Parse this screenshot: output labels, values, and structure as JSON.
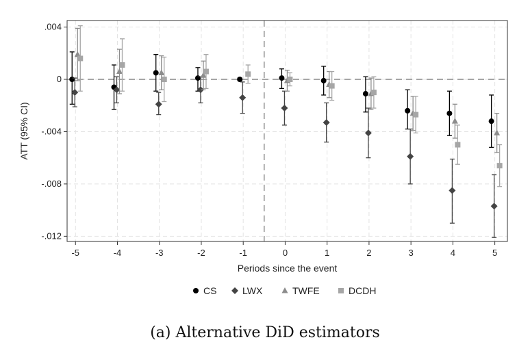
{
  "chart_data": {
    "type": "scatter",
    "subtype": "coefficient plot with 95% CI error bars",
    "title": "",
    "xlabel": "Periods since the event",
    "ylabel": "ATT (95% CI)",
    "x": [
      -5,
      -4,
      -3,
      -2,
      -1,
      0,
      1,
      2,
      3,
      4,
      5
    ],
    "x_tick_labels": [
      "-5",
      "-4",
      "-3",
      "-2",
      "-1",
      "0",
      "1",
      "2",
      "3",
      "4",
      "5"
    ],
    "y_ticks": [
      0.004,
      0,
      -0.004,
      -0.008,
      -0.012
    ],
    "y_tick_labels": [
      ".004",
      "0",
      "-.004",
      "-.008",
      "-.012"
    ],
    "xlim": [
      -5.2,
      5.3
    ],
    "ylim": [
      -0.0124,
      0.0045
    ],
    "reference_lines": {
      "y": 0,
      "x": -0.5
    },
    "grid": true,
    "legend_position": "bottom",
    "series": [
      {
        "name": "CS",
        "marker": "circle",
        "color": "#000000",
        "x": [
          -5,
          -4,
          -3,
          -2,
          -1,
          0,
          1,
          2,
          3,
          4,
          5
        ],
        "values": [
          0.0,
          -0.0006,
          0.0005,
          0.0001,
          0.0,
          0.0001,
          -0.0001,
          -0.0011,
          -0.0024,
          -0.0026,
          -0.0032
        ],
        "ci_low": [
          -0.0019,
          -0.0023,
          -0.0009,
          -0.0009,
          -0.0001,
          -0.0007,
          -0.0012,
          -0.0025,
          -0.0038,
          -0.0043,
          -0.0052
        ],
        "ci_high": [
          0.0021,
          0.0011,
          0.0019,
          0.0009,
          0.0001,
          0.0008,
          0.001,
          0.0002,
          -0.0008,
          -0.0009,
          -0.0012
        ]
      },
      {
        "name": "LWX",
        "marker": "diamond",
        "color": "#444444",
        "x": [
          -5,
          -4,
          -3,
          -2,
          -1,
          0,
          1,
          2,
          3,
          4,
          5
        ],
        "values": [
          -0.001,
          -0.0008,
          -0.0019,
          -0.0008,
          -0.0014,
          -0.0022,
          -0.0033,
          -0.0041,
          -0.0059,
          -0.0085,
          -0.0097
        ],
        "ci_low": [
          -0.0021,
          -0.0018,
          -0.0027,
          -0.0018,
          -0.0026,
          -0.0035,
          -0.0048,
          -0.006,
          -0.008,
          -0.011,
          -0.0121
        ],
        "ci_high": [
          0.0001,
          0.0002,
          -0.001,
          0.0002,
          -0.0002,
          -0.0009,
          -0.0018,
          -0.0022,
          -0.0038,
          -0.0061,
          -0.0073
        ]
      },
      {
        "name": "TWFE",
        "marker": "triangle",
        "color": "#8c8c8c",
        "x": [
          -5,
          -4,
          -3,
          -2,
          -1,
          0,
          1,
          2,
          3,
          4,
          5
        ],
        "values": [
          0.0019,
          0.0006,
          0.0005,
          0.0003,
          null,
          -0.0001,
          -0.0004,
          -0.0011,
          -0.0026,
          -0.0032,
          -0.0041
        ],
        "ci_low": [
          -0.0001,
          -0.0011,
          -0.0008,
          -0.0008,
          null,
          -0.0009,
          -0.0014,
          -0.0023,
          -0.0039,
          -0.0045,
          -0.0056
        ],
        "ci_high": [
          0.0039,
          0.0023,
          0.0018,
          0.0014,
          null,
          0.0007,
          0.0006,
          0.0001,
          -0.0013,
          -0.0019,
          -0.0026
        ]
      },
      {
        "name": "DCDH",
        "marker": "square",
        "color": "#a6a6a6",
        "x": [
          -5,
          -4,
          -3,
          -2,
          -1,
          0,
          1,
          2,
          3,
          4,
          5
        ],
        "values": [
          0.0016,
          0.0011,
          0.0,
          0.0006,
          0.0004,
          0.0,
          -0.0005,
          -0.001,
          -0.0027,
          -0.005,
          -0.0066
        ],
        "ci_low": [
          -0.0009,
          -0.0009,
          -0.0017,
          -0.0007,
          -0.0003,
          -0.0005,
          -0.0016,
          -0.0022,
          -0.0041,
          -0.0065,
          -0.0082
        ],
        "ci_high": [
          0.0041,
          0.0031,
          0.0017,
          0.0019,
          0.0011,
          0.0005,
          0.0006,
          0.0002,
          -0.0013,
          -0.0035,
          -0.005
        ]
      }
    ]
  },
  "caption": "(a) Alternative DiD estimators"
}
